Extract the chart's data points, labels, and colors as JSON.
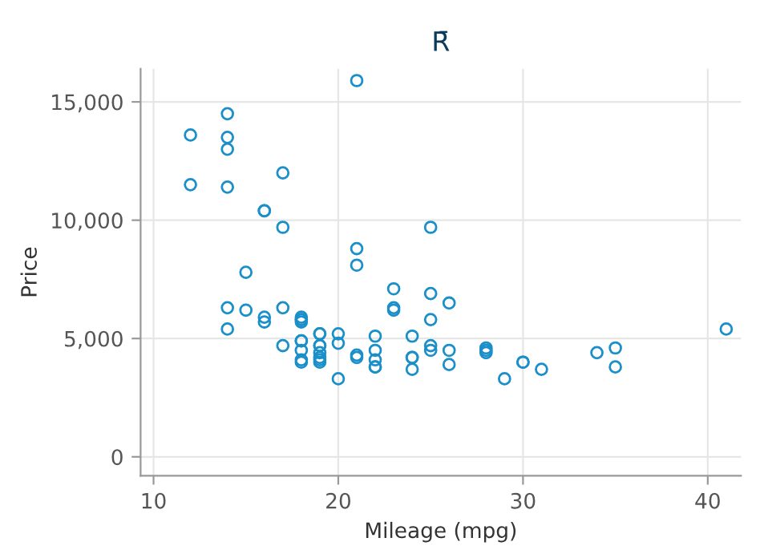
{
  "chart_data": {
    "type": "scatter",
    "title": "R̄",
    "xlabel": "Mileage (mpg)",
    "ylabel": "Price",
    "x": [
      22,
      17,
      22,
      20,
      15,
      18,
      26,
      20,
      16,
      19,
      14,
      14,
      21,
      29,
      16,
      22,
      22,
      24,
      19,
      30,
      18,
      16,
      17,
      28,
      21,
      12,
      12,
      14,
      22,
      14,
      15,
      18,
      14,
      20,
      21,
      19,
      19,
      18,
      19,
      24,
      16,
      28,
      34,
      25,
      26,
      18,
      18,
      18,
      19,
      19,
      19,
      24,
      17,
      23,
      25,
      23,
      35,
      24,
      21,
      21,
      25,
      28,
      30,
      14,
      26,
      35,
      18,
      31,
      18,
      23,
      41,
      25,
      25,
      17
    ],
    "series": [
      {
        "color": "#1a8fc9",
        "values": [
          4100,
          4700,
          3800,
          4800,
          7800,
          5800,
          4500,
          5200,
          10400,
          4100,
          11400,
          14500,
          15900,
          3300,
          5700,
          4500,
          5100,
          3700,
          4000,
          4000,
          4000,
          5900,
          6300,
          4400,
          4200,
          11500,
          13600,
          13500,
          3800,
          5400,
          6200,
          4500,
          6300,
          3300,
          8800,
          5200,
          4700,
          4900,
          4200,
          4200,
          10400,
          4600,
          4400,
          4500,
          6500,
          4100,
          5800,
          4900,
          5200,
          4700,
          4400,
          4200,
          9700,
          6300,
          9700,
          6200,
          4600,
          5100,
          8100,
          4300,
          5800,
          4500,
          4000,
          13000,
          3900,
          3800,
          5900,
          3700,
          5700,
          7100,
          5400,
          4700,
          6900,
          12000
        ]
      }
    ],
    "marker": "circle",
    "grid": true,
    "xlim": [
      9.3,
      41.8
    ],
    "xticks": [
      10,
      20,
      30,
      40
    ],
    "ylim": [
      -800,
      16400
    ],
    "yticks": [
      0,
      {
        "value": 5000,
        "label": "5,000"
      },
      {
        "value": 10000,
        "label": "10,000"
      },
      {
        "value": 15000,
        "label": "15,000"
      }
    ]
  }
}
